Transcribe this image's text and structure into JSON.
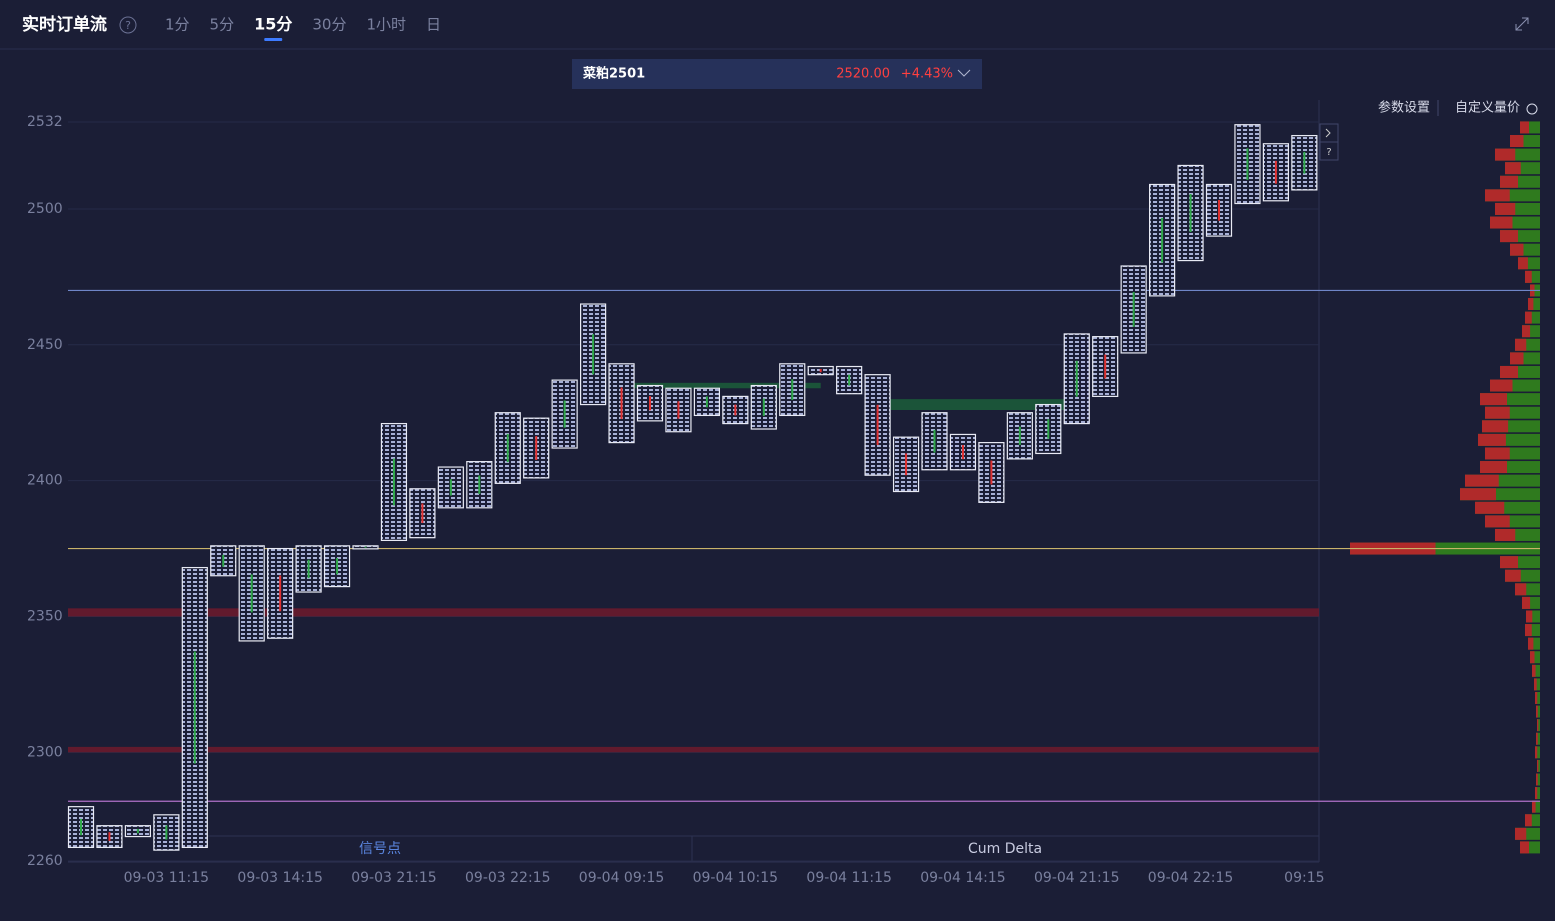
{
  "header": {
    "title": "实时订单流",
    "tabs": [
      "1分",
      "5分",
      "15分",
      "30分",
      "1小时",
      "日"
    ],
    "active_tab": 2
  },
  "ticker": {
    "name": "菜粕2501",
    "price": "2520.00",
    "change": "+4.43%"
  },
  "toolbar": {
    "params": "参数设置",
    "custom": "自定义量价"
  },
  "chart_data": {
    "type": "footprint",
    "categories": [
      null,
      null,
      null,
      "09-03 11:15",
      null,
      null,
      null,
      "09-03 14:15",
      null,
      null,
      null,
      "09-03 21:15",
      null,
      null,
      null,
      "09-03 22:15",
      null,
      null,
      null,
      "09-04 09:15",
      null,
      null,
      null,
      "09-04 10:15",
      null,
      null,
      null,
      "09-04 11:15",
      null,
      null,
      null,
      "09-04 14:15",
      null,
      null,
      null,
      "09-04 21:15",
      null,
      null,
      null,
      "09-04 22:15",
      null,
      null,
      null,
      "09:15"
    ],
    "highs": [
      2280,
      2273,
      2273,
      2277,
      2368,
      2376,
      2376,
      2375,
      2376,
      2376,
      2376,
      2421,
      2397,
      2405,
      2407,
      2425,
      2423,
      2437,
      2465,
      2443,
      2435,
      2434,
      2434,
      2431,
      2435,
      2443,
      2442,
      2442,
      2439,
      2416,
      2425,
      2417,
      2414,
      2425,
      2428,
      2454,
      2453,
      2479,
      2509,
      2516,
      2509,
      2531,
      2524,
      2527
    ],
    "lows": [
      2265,
      2265,
      2269,
      2264,
      2265,
      2365,
      2341,
      2342,
      2359,
      2361,
      2375,
      2378,
      2379,
      2390,
      2390,
      2399,
      2401,
      2412,
      2428,
      2414,
      2422,
      2418,
      2424,
      2421,
      2419,
      2424,
      2439,
      2432,
      2402,
      2396,
      2404,
      2404,
      2392,
      2408,
      2410,
      2421,
      2431,
      2447,
      2468,
      2481,
      2490,
      2502,
      2503,
      2507
    ],
    "ylim": [
      2260,
      2532
    ],
    "yticks": [
      2260,
      2300,
      2350,
      2400,
      2450,
      2500,
      2532
    ],
    "lines": [
      {
        "value": 2470,
        "color": "#6f86c8"
      },
      {
        "value": 2375,
        "color": "#c9b36a"
      },
      {
        "value": 2282,
        "color": "#b070c8"
      }
    ],
    "zones": [
      {
        "from": 2350,
        "to": 2353,
        "color": "#6a1a2c"
      },
      {
        "from": 2300,
        "to": 2302,
        "color": "#6a1a2c"
      },
      {
        "from": 2434,
        "to": 2436,
        "color": "#1c5a3a",
        "start": 19,
        "end": 26
      },
      {
        "from": 2426,
        "to": 2430,
        "color": "#1c5a3a",
        "start": 28,
        "end": 35
      }
    ],
    "profile": {
      "start": 2265,
      "step": 5,
      "values": [
        20,
        25,
        15,
        8,
        5,
        4,
        3,
        5,
        4,
        3,
        4,
        5,
        6,
        8,
        10,
        12,
        15,
        14,
        18,
        25,
        35,
        40,
        190,
        45,
        55,
        65,
        80,
        75,
        60,
        55,
        62,
        58,
        55,
        60,
        50,
        40,
        30,
        25,
        18,
        15,
        12,
        10,
        15,
        22,
        30,
        40,
        50,
        45,
        55,
        40,
        35,
        45,
        30,
        20
      ]
    },
    "panels": [
      "信号点",
      "Cum Delta"
    ]
  }
}
